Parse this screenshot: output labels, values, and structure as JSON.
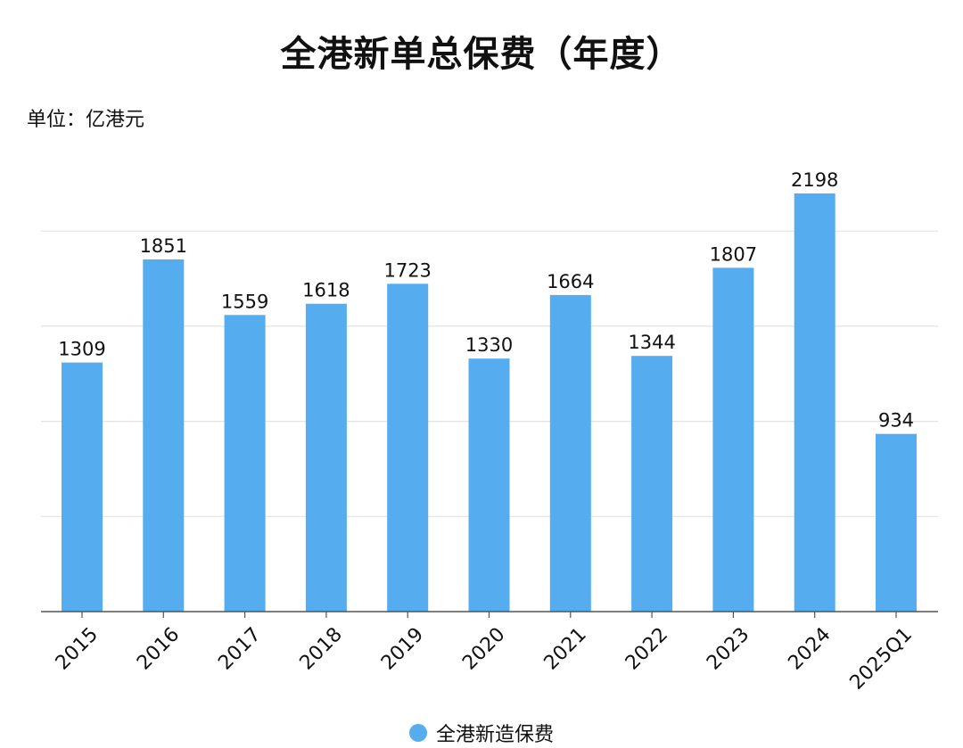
{
  "colors": {
    "bar": "#55ACEE",
    "grid": "#E3E3E3",
    "axis": "#555555",
    "text": "#111111"
  },
  "chart_data": {
    "type": "bar",
    "title": "全港新单总保费（年度）",
    "unit_label": "单位：亿港元",
    "categories": [
      "2015",
      "2016",
      "2017",
      "2018",
      "2019",
      "2020",
      "2021",
      "2022",
      "2023",
      "2024",
      "2025Q1"
    ],
    "series": [
      {
        "name": "全港新造保费",
        "values": [
          1309,
          1851,
          1559,
          1618,
          1723,
          1330,
          1664,
          1344,
          1807,
          2198,
          934
        ]
      }
    ],
    "ylim": [
      0,
      2500
    ],
    "gridlines": [
      500,
      1000,
      1500,
      2000
    ],
    "grid": true,
    "data_labels": true,
    "legend_position": "bottom-center"
  }
}
